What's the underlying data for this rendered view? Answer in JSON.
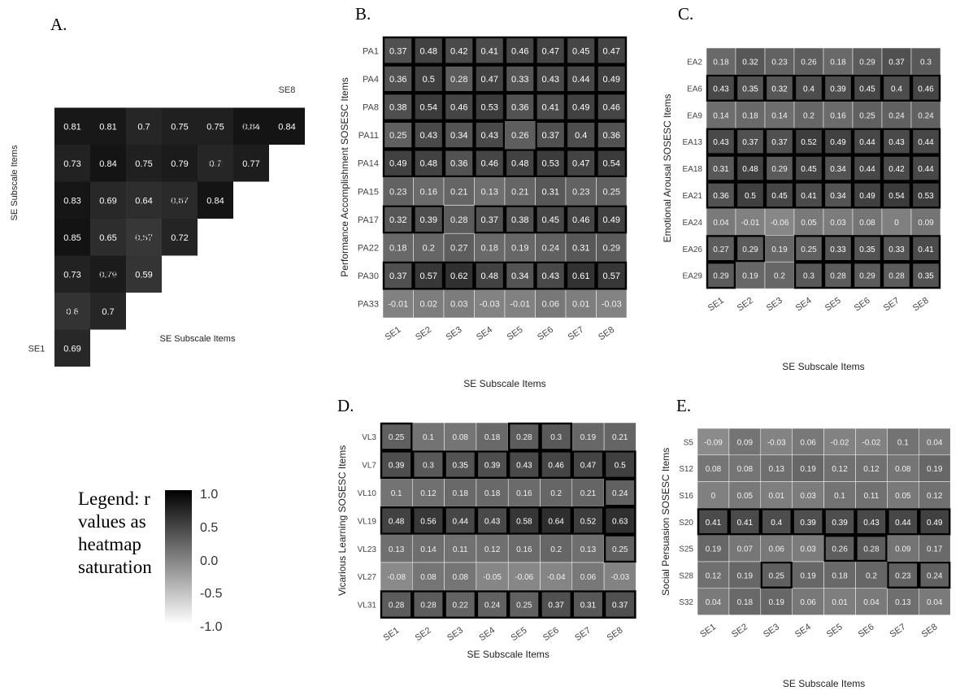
{
  "panels": [
    {
      "letter": "A.",
      "xlabel": "SE Subscale Items",
      "ylabel": "SE Subscale Items"
    },
    {
      "letter": "B.",
      "xlabel": "SE Subscale Items",
      "ylabel": "Performance Accomplishment SOSESC Items"
    },
    {
      "letter": "C.",
      "xlabel": "SE Subscale Items",
      "ylabel": "Emotional Arousal SOSESC Items"
    },
    {
      "letter": "D.",
      "xlabel": "SE Subscale Items",
      "ylabel": "Vicarious Learning SOSESC Items"
    },
    {
      "letter": "E.",
      "xlabel": "SE Subscale Items",
      "ylabel": "Social Persuasion SOSESC Items"
    }
  ],
  "legend": {
    "lines": [
      "Legend: r",
      "values as",
      "heatmap",
      "saturation"
    ],
    "ticks": [
      "1.0",
      "0.5",
      "0.0",
      "-0.5",
      "-1.0"
    ]
  },
  "chart_data": [
    {
      "type": "heatmap",
      "title": "A.",
      "xlabel": "SE Subscale Items",
      "ylabel": "SE Subscale Items",
      "columns": [
        "SE1",
        "SE2",
        "SE3",
        "SE4",
        "SE5",
        "SE6",
        "SE7",
        "SE8"
      ],
      "rows": [
        "SE1",
        "SE2",
        "SE3",
        "SE4",
        "SE5",
        "SE6",
        "SE7",
        "SE8"
      ],
      "lower_triangle_values": [
        [
          "SE2",
          "SE1",
          0.69
        ],
        [
          "SE3",
          "SE1",
          0.6
        ],
        [
          "SE3",
          "SE2",
          0.7
        ],
        [
          "SE4",
          "SE1",
          0.73
        ],
        [
          "SE4",
          "SE2",
          0.79
        ],
        [
          "SE4",
          "SE3",
          0.59
        ],
        [
          "SE5",
          "SE1",
          0.85
        ],
        [
          "SE5",
          "SE2",
          0.65
        ],
        [
          "SE5",
          "SE3",
          0.57
        ],
        [
          "SE5",
          "SE4",
          0.72
        ],
        [
          "SE6",
          "SE1",
          0.83
        ],
        [
          "SE6",
          "SE2",
          0.69
        ],
        [
          "SE6",
          "SE3",
          0.64
        ],
        [
          "SE6",
          "SE4",
          0.67
        ],
        [
          "SE6",
          "SE5",
          0.84
        ],
        [
          "SE7",
          "SE1",
          0.73
        ],
        [
          "SE7",
          "SE2",
          0.84
        ],
        [
          "SE7",
          "SE3",
          0.75
        ],
        [
          "SE7",
          "SE4",
          0.79
        ],
        [
          "SE7",
          "SE5",
          0.7
        ],
        [
          "SE7",
          "SE6",
          0.77
        ],
        [
          "SE8",
          "SE1",
          0.81
        ],
        [
          "SE8",
          "SE2",
          0.81
        ],
        [
          "SE8",
          "SE3",
          0.7
        ],
        [
          "SE8",
          "SE4",
          0.75
        ],
        [
          "SE8",
          "SE5",
          0.75
        ],
        [
          "SE8",
          "SE6",
          0.84
        ],
        [
          "SE8",
          "SE7",
          0.84
        ]
      ],
      "value_range": [
        -1,
        1
      ]
    },
    {
      "type": "heatmap",
      "title": "B.",
      "xlabel": "SE Subscale Items",
      "ylabel": "Performance Accomplishment SOSESC Items",
      "columns": [
        "SE1",
        "SE2",
        "SE3",
        "SE4",
        "SE5",
        "SE6",
        "SE7",
        "SE8"
      ],
      "rows": [
        "PA1",
        "PA4",
        "PA8",
        "PA11",
        "PA14",
        "PA15",
        "PA17",
        "PA22",
        "PA30",
        "PA33"
      ],
      "values": [
        [
          "0.37",
          "0.48",
          "0.42",
          "0.41",
          "0.46",
          "0.47",
          "0.45",
          "0.47"
        ],
        [
          "0.36",
          "0.5",
          "0.28",
          "0.47",
          "0.33",
          "0.43",
          "0.44",
          "0.49"
        ],
        [
          "0.38",
          "0.54",
          "0.46",
          "0.53",
          "0.36",
          "0.41",
          "0.49",
          "0.46"
        ],
        [
          "0.25",
          "0.43",
          "0.34",
          "0.43",
          "0.26",
          "0.37",
          "0.4",
          "0.36"
        ],
        [
          "0.49",
          "0.48",
          "0.36",
          "0.46",
          "0.48",
          "0.53",
          "0.47",
          "0.54"
        ],
        [
          "0.23",
          "0.16",
          "0.21",
          "0.13",
          "0.21",
          "0.31",
          "0.23",
          "0.25"
        ],
        [
          "0.32",
          "0.39",
          "0.28",
          "0.37",
          "0.38",
          "0.45",
          "0.46",
          "0.49"
        ],
        [
          "0.18",
          "0.2",
          "0.27",
          "0.18",
          "0.19",
          "0.24",
          "0.31",
          "0.29"
        ],
        [
          "0.37",
          "0.57",
          "0.62",
          "0.48",
          "0.34",
          "0.43",
          "0.61",
          "0.57"
        ],
        [
          "-0.01",
          "0.02",
          "0.03",
          "-0.03",
          "-0.01",
          "0.06",
          "0.01",
          "-0.03"
        ]
      ],
      "highlighted": [
        [
          1,
          1,
          1,
          1,
          1,
          1,
          1,
          1
        ],
        [
          1,
          1,
          1,
          1,
          1,
          1,
          1,
          1
        ],
        [
          1,
          1,
          1,
          1,
          1,
          1,
          1,
          1
        ],
        [
          1,
          1,
          1,
          1,
          0,
          1,
          1,
          1
        ],
        [
          1,
          1,
          1,
          1,
          1,
          1,
          1,
          1
        ],
        [
          0,
          0,
          0,
          0,
          0,
          0,
          0,
          0
        ],
        [
          1,
          1,
          0,
          1,
          1,
          1,
          1,
          1
        ],
        [
          0,
          0,
          0,
          0,
          0,
          0,
          0,
          0
        ],
        [
          1,
          1,
          1,
          1,
          1,
          1,
          1,
          1
        ],
        [
          0,
          0,
          0,
          0,
          0,
          0,
          0,
          0
        ]
      ],
      "value_range": [
        -1,
        1
      ]
    },
    {
      "type": "heatmap",
      "title": "C.",
      "xlabel": "SE Subscale Items",
      "ylabel": "Emotional Arousal SOSESC Items",
      "columns": [
        "SE1",
        "SE2",
        "SE3",
        "SE4",
        "SE5",
        "SE6",
        "SE7",
        "SE8"
      ],
      "rows": [
        "EA2",
        "EA6",
        "EA9",
        "EA13",
        "EA18",
        "EA21",
        "EA24",
        "EA26",
        "EA29"
      ],
      "values": [
        [
          "0.18",
          "0.32",
          "0.23",
          "0.26",
          "0.18",
          "0.29",
          "0.37",
          "0.3"
        ],
        [
          "0.43",
          "0.35",
          "0.32",
          "0.4",
          "0.39",
          "0.45",
          "0.4",
          "0.46"
        ],
        [
          "0.14",
          "0.18",
          "0.14",
          "0.2",
          "0.16",
          "0.25",
          "0.24",
          "0.24"
        ],
        [
          "0.43",
          "0.37",
          "0.37",
          "0.52",
          "0.49",
          "0.44",
          "0.43",
          "0.44"
        ],
        [
          "0.31",
          "0.48",
          "0.29",
          "0.45",
          "0.34",
          "0.44",
          "0.42",
          "0.44"
        ],
        [
          "0.36",
          "0.5",
          "0.45",
          "0.41",
          "0.34",
          "0.49",
          "0.54",
          "0.53"
        ],
        [
          "0.04",
          "-0.01",
          "-0.06",
          "0.05",
          "0.03",
          "0.08",
          "0",
          "0.09"
        ],
        [
          "0.27",
          "0.29",
          "0.19",
          "0.25",
          "0.33",
          "0.35",
          "0.33",
          "0.41"
        ],
        [
          "0.29",
          "0.19",
          "0.2",
          "0.3",
          "0.28",
          "0.29",
          "0.28",
          "0.35"
        ]
      ],
      "highlighted": [
        [
          0,
          0,
          0,
          0,
          0,
          0,
          0,
          0
        ],
        [
          1,
          1,
          1,
          1,
          1,
          1,
          1,
          1
        ],
        [
          0,
          0,
          0,
          0,
          0,
          0,
          0,
          0
        ],
        [
          1,
          1,
          1,
          1,
          1,
          1,
          1,
          1
        ],
        [
          1,
          1,
          1,
          1,
          1,
          1,
          1,
          1
        ],
        [
          1,
          1,
          1,
          1,
          1,
          1,
          1,
          1
        ],
        [
          0,
          0,
          0,
          0,
          0,
          0,
          0,
          0
        ],
        [
          1,
          1,
          0,
          1,
          1,
          1,
          1,
          1
        ],
        [
          1,
          0,
          0,
          1,
          1,
          1,
          1,
          1
        ]
      ],
      "value_range": [
        -1,
        1
      ]
    },
    {
      "type": "heatmap",
      "title": "D.",
      "xlabel": "SE Subscale Items",
      "ylabel": "Vicarious Learning SOSESC Items",
      "columns": [
        "SE1",
        "SE2",
        "SE3",
        "SE4",
        "SE5",
        "SE6",
        "SE7",
        "SE8"
      ],
      "rows": [
        "VL3",
        "VL7",
        "VL10",
        "VL19",
        "VL23",
        "VL27",
        "VL31"
      ],
      "values": [
        [
          "0.25",
          "0.1",
          "0.08",
          "0.18",
          "0.28",
          "0.3",
          "0.19",
          "0.21"
        ],
        [
          "0.39",
          "0.3",
          "0.35",
          "0.39",
          "0.43",
          "0.46",
          "0.47",
          "0.5"
        ],
        [
          "0.1",
          "0.12",
          "0.18",
          "0.18",
          "0.16",
          "0.2",
          "0.21",
          "0.24"
        ],
        [
          "0.48",
          "0.56",
          "0.44",
          "0.43",
          "0.58",
          "0.64",
          "0.52",
          "0.63"
        ],
        [
          "0.13",
          "0.14",
          "0.11",
          "0.12",
          "0.16",
          "0.2",
          "0.13",
          "0.25"
        ],
        [
          "-0.08",
          "0.08",
          "0.08",
          "-0.05",
          "-0.06",
          "-0.04",
          "0.06",
          "-0.03"
        ],
        [
          "0.28",
          "0.28",
          "0.22",
          "0.24",
          "0.25",
          "0.37",
          "0.31",
          "0.37"
        ]
      ],
      "highlighted": [
        [
          1,
          0,
          0,
          0,
          1,
          1,
          0,
          0
        ],
        [
          1,
          1,
          1,
          1,
          1,
          1,
          1,
          1
        ],
        [
          0,
          0,
          0,
          0,
          0,
          0,
          0,
          1
        ],
        [
          1,
          1,
          1,
          1,
          1,
          1,
          1,
          1
        ],
        [
          0,
          0,
          0,
          0,
          0,
          0,
          0,
          1
        ],
        [
          0,
          0,
          0,
          0,
          0,
          0,
          0,
          0
        ],
        [
          1,
          1,
          1,
          1,
          1,
          1,
          1,
          1
        ]
      ],
      "value_range": [
        -1,
        1
      ]
    },
    {
      "type": "heatmap",
      "title": "E.",
      "xlabel": "SE Subscale Items",
      "ylabel": "Social Persuasion SOSESC Items",
      "columns": [
        "SE1",
        "SE2",
        "SE3",
        "SE4",
        "SE5",
        "SE6",
        "SE7",
        "SE8"
      ],
      "rows": [
        "S5",
        "S12",
        "S16",
        "S20",
        "S25",
        "S28",
        "S32"
      ],
      "values": [
        [
          "-0.09",
          "0.09",
          "-0.03",
          "0.06",
          "-0.02",
          "-0.02",
          "0.1",
          "0.04"
        ],
        [
          "0.08",
          "0.08",
          "0.13",
          "0.19",
          "0.12",
          "0.12",
          "0.08",
          "0.19"
        ],
        [
          "0",
          "0.05",
          "0.01",
          "0.03",
          "0.1",
          "0.11",
          "0.05",
          "0.12"
        ],
        [
          "0.41",
          "0.41",
          "0.4",
          "0.39",
          "0.39",
          "0.43",
          "0.44",
          "0.49"
        ],
        [
          "0.19",
          "0.07",
          "0.06",
          "0.03",
          "0.26",
          "0.28",
          "0.09",
          "0.17"
        ],
        [
          "0.12",
          "0.19",
          "0.25",
          "0.19",
          "0.18",
          "0.2",
          "0.23",
          "0.24"
        ],
        [
          "0.04",
          "0.18",
          "0.19",
          "0.06",
          "0.01",
          "0.04",
          "0.13",
          "0.04"
        ]
      ],
      "highlighted": [
        [
          0,
          0,
          0,
          0,
          0,
          0,
          0,
          0
        ],
        [
          0,
          0,
          0,
          0,
          0,
          0,
          0,
          0
        ],
        [
          0,
          0,
          0,
          0,
          0,
          0,
          0,
          0
        ],
        [
          1,
          1,
          1,
          1,
          1,
          1,
          1,
          1
        ],
        [
          0,
          0,
          0,
          0,
          1,
          1,
          0,
          0
        ],
        [
          0,
          0,
          1,
          0,
          0,
          0,
          1,
          1
        ],
        [
          0,
          0,
          0,
          0,
          0,
          0,
          0,
          0
        ]
      ],
      "value_range": [
        -1,
        1
      ]
    }
  ]
}
